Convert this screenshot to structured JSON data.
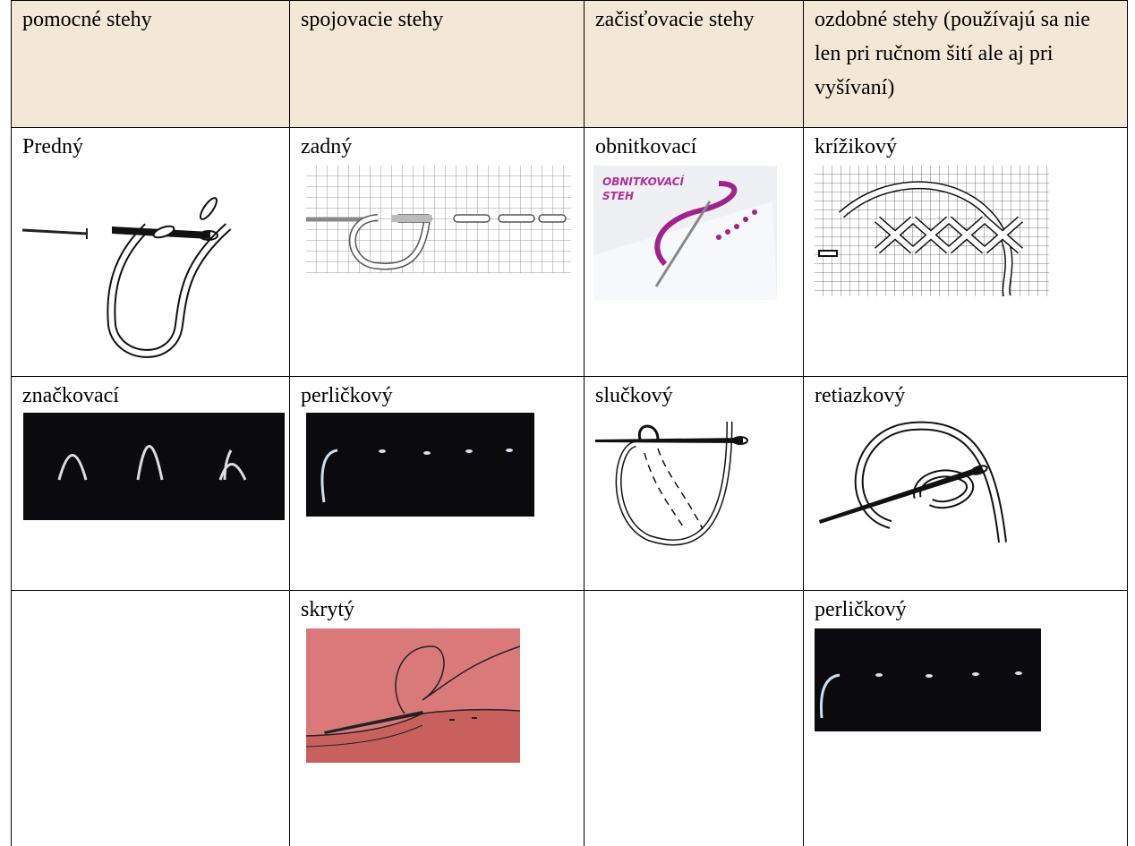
{
  "table": {
    "header": [
      "pomocné stehy",
      "spojovacie stehy",
      "začisťovacie stehy",
      "ozdobné stehy (používajú sa nie len pri ručnom šití ale aj pri vyšívaní)"
    ],
    "rows": [
      [
        "Predný",
        "zadný",
        "obnitkovací",
        "krížikový"
      ],
      [
        "značkovací",
        "perličkový",
        "slučkový",
        "retiazkový"
      ],
      [
        null,
        "skrytý",
        null,
        "perličkový"
      ]
    ]
  }
}
